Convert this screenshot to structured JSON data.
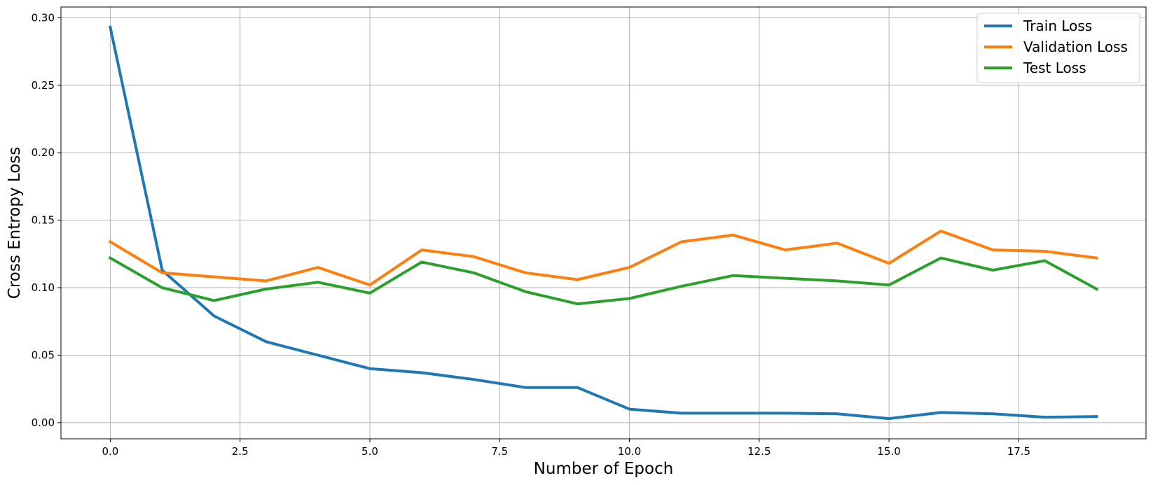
{
  "chart_data": {
    "type": "line",
    "title": "",
    "xlabel": "Number of Epoch",
    "ylabel": "Cross Entropy Loss",
    "xlim": [
      -0.95,
      19.95
    ],
    "ylim": [
      -0.012,
      0.308
    ],
    "grid": true,
    "legend_position": "top-right",
    "xticks": [
      0.0,
      2.5,
      5.0,
      7.5,
      10.0,
      12.5,
      15.0,
      17.5
    ],
    "xtick_labels": [
      "0.0",
      "2.5",
      "5.0",
      "7.5",
      "10.0",
      "12.5",
      "15.0",
      "17.5"
    ],
    "yticks": [
      0.0,
      0.05,
      0.1,
      0.15,
      0.2,
      0.25,
      0.3
    ],
    "ytick_labels": [
      "0.00",
      "0.05",
      "0.10",
      "0.15",
      "0.20",
      "0.25",
      "0.30"
    ],
    "x": [
      0,
      1,
      2,
      3,
      4,
      5,
      6,
      7,
      8,
      9,
      10,
      11,
      12,
      13,
      14,
      15,
      16,
      17,
      18,
      19
    ],
    "series": [
      {
        "name": "Train Loss",
        "color": "#1f77b4",
        "values": [
          0.293,
          0.113,
          0.079,
          0.06,
          0.05,
          0.04,
          0.037,
          0.032,
          0.026,
          0.026,
          0.01,
          0.007,
          0.007,
          0.007,
          0.0065,
          0.003,
          0.0075,
          0.0065,
          0.004,
          0.0045
        ]
      },
      {
        "name": "Validation Loss",
        "color": "#ff7f0e",
        "values": [
          0.134,
          0.111,
          0.108,
          0.105,
          0.115,
          0.102,
          0.128,
          0.123,
          0.111,
          0.106,
          0.115,
          0.134,
          0.139,
          0.128,
          0.133,
          0.118,
          0.142,
          0.128,
          0.127,
          0.122
        ]
      },
      {
        "name": "Test Loss",
        "color": "#2ca02c",
        "values": [
          0.122,
          0.1,
          0.0905,
          0.099,
          0.104,
          0.096,
          0.119,
          0.111,
          0.097,
          0.088,
          0.092,
          0.101,
          0.109,
          0.107,
          0.105,
          0.102,
          0.122,
          0.113,
          0.12,
          0.099
        ]
      }
    ]
  }
}
